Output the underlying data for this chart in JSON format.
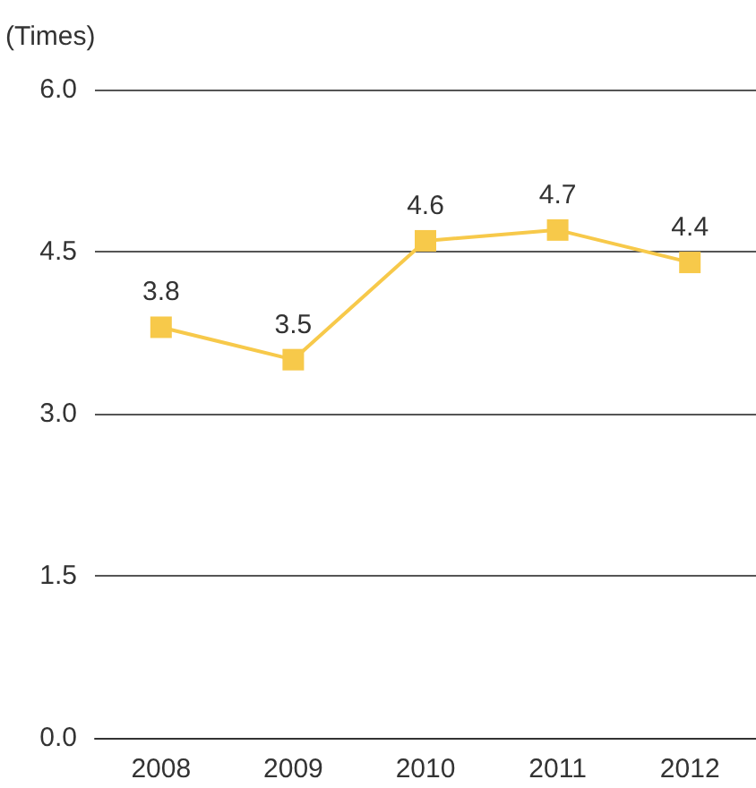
{
  "chart_data": {
    "type": "line",
    "ylabel": "(Times)",
    "categories": [
      "2008",
      "2009",
      "2010",
      "2011",
      "2012"
    ],
    "series": [
      {
        "color": "#f7c94a",
        "values": [
          3.8,
          3.5,
          4.6,
          4.7,
          4.4
        ]
      }
    ],
    "ylim": [
      0,
      6
    ],
    "yticks": [
      {
        "value": 0,
        "label": "0.0"
      },
      {
        "value": 1.5,
        "label": "1.5"
      },
      {
        "value": 3,
        "label": "3.0"
      },
      {
        "value": 4.5,
        "label": "4.5"
      },
      {
        "value": 6,
        "label": "6.0"
      }
    ],
    "grid": "y",
    "marker": "square",
    "line_style": "solid",
    "data_labels": true
  }
}
